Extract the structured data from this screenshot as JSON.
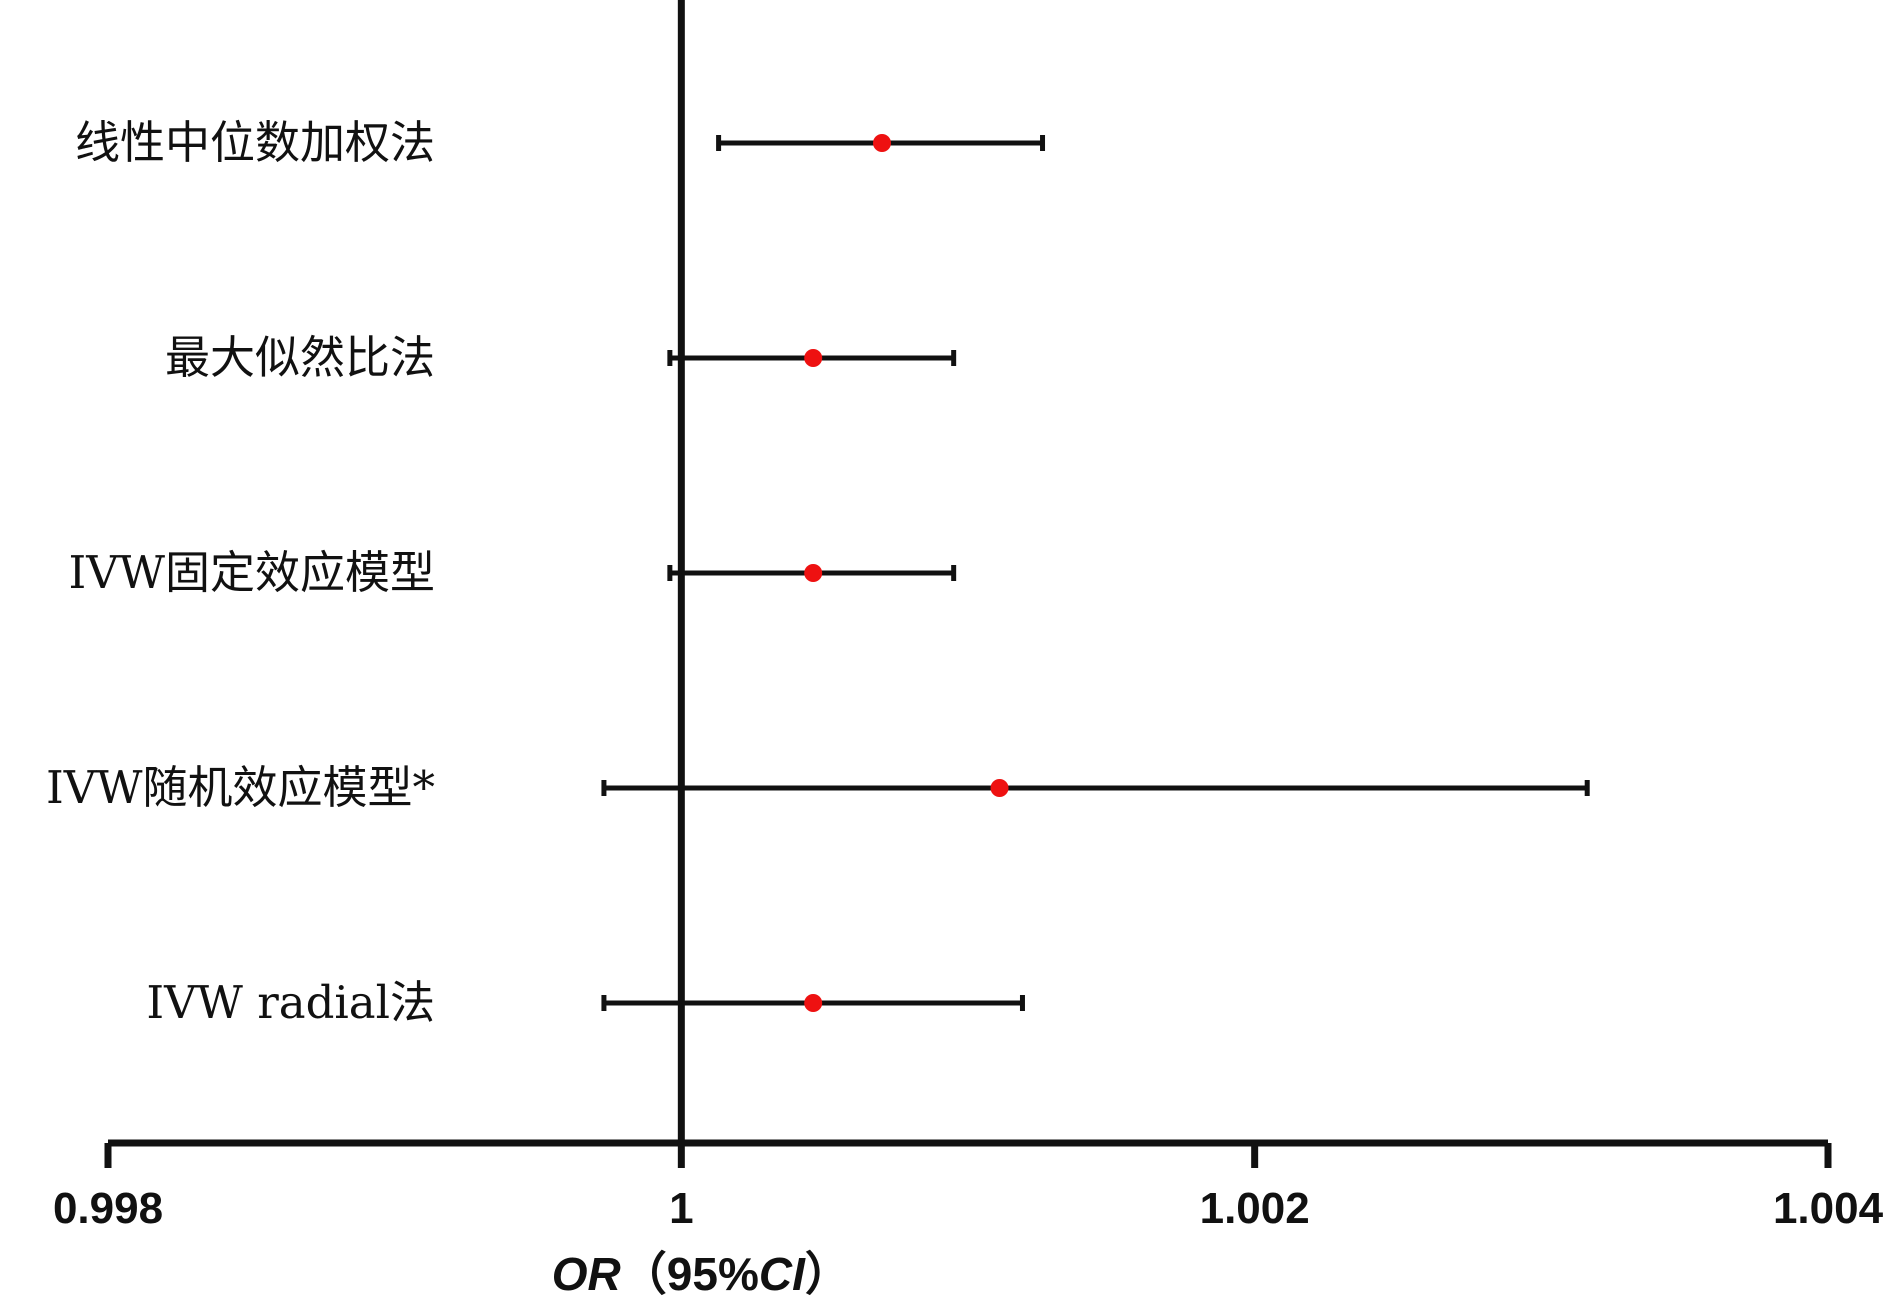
{
  "chart_data": {
    "type": "forest",
    "xlabel": {
      "parts": [
        {
          "text": "OR",
          "italic": true
        },
        {
          "text": "（95%",
          "italic": false
        },
        {
          "text": "CI",
          "italic": true
        },
        {
          "text": "）",
          "italic": false
        }
      ]
    },
    "xlim": [
      0.998,
      1.004
    ],
    "xticks": [
      0.998,
      1.0,
      1.002,
      1.004
    ],
    "xtick_labels": [
      "0.998",
      "1",
      "1.002",
      "1.004"
    ],
    "reference_line": 1.0,
    "rows": [
      {
        "label": "线性中位数加权法",
        "or": 1.0007,
        "lower": 1.00013,
        "upper": 1.00126
      },
      {
        "label": "最大似然比法",
        "or": 1.00046,
        "lower": 0.99996,
        "upper": 1.00095
      },
      {
        "label": "IVW固定效应模型",
        "or": 1.00046,
        "lower": 0.99996,
        "upper": 1.00095
      },
      {
        "label": "IVW随机效应模型*",
        "or": 1.00111,
        "lower": 0.99973,
        "upper": 1.00316
      },
      {
        "label": "IVW radial法",
        "or": 1.00046,
        "lower": 0.99973,
        "upper": 1.00119
      }
    ],
    "colors": {
      "point": "#ee1111",
      "line": "#111111",
      "axis": "#111111"
    }
  }
}
